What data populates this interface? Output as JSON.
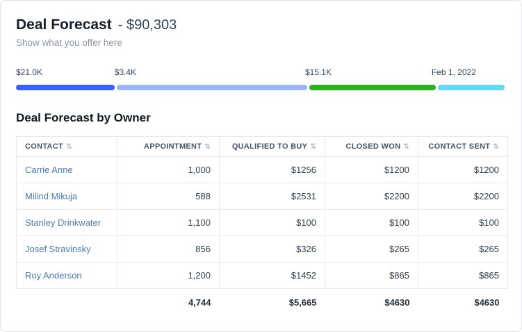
{
  "header": {
    "title": "Deal Forecast",
    "amount": "- $90,303",
    "subtitle": "Show what you offer here"
  },
  "progress": {
    "segments": [
      {
        "label": "$21.0K",
        "color": "#3b63f3",
        "width": 20.1
      },
      {
        "label": "$3.4K",
        "color": "#9db6f7",
        "width": 38.9
      },
      {
        "label": "$15.1K",
        "color": "#2cb121",
        "width": 25.8
      },
      {
        "label": "Feb 1, 2022",
        "color": "#67d6f8",
        "width": 13.7
      }
    ]
  },
  "table": {
    "title": "Deal Forecast by Owner",
    "columns": [
      {
        "label": "CONTACT",
        "align": "left"
      },
      {
        "label": "APPOINTMENT",
        "align": "right"
      },
      {
        "label": "QUALIFIED TO BUY",
        "align": "right"
      },
      {
        "label": "CLOSED WON",
        "align": "right"
      },
      {
        "label": "CONTACT SENT",
        "align": "right"
      }
    ],
    "rows": [
      [
        "Carrie Anne",
        "1,000",
        "$1256",
        "$1200",
        "$1200"
      ],
      [
        "Milind Mikuja",
        "588",
        "$2531",
        "$2200",
        "$2200"
      ],
      [
        "Stanley Drinkwater",
        "1,100",
        "$100",
        "$100",
        "$100"
      ],
      [
        "Josef Stravinsky",
        "856",
        "$326",
        "$265",
        "$265"
      ],
      [
        "Roy Anderson",
        "1,200",
        "$1452",
        "$865",
        "$865"
      ]
    ],
    "totals": [
      "",
      "4,744",
      "$5,665",
      "$4630",
      "$4630"
    ],
    "sort_icon": "⇅"
  }
}
